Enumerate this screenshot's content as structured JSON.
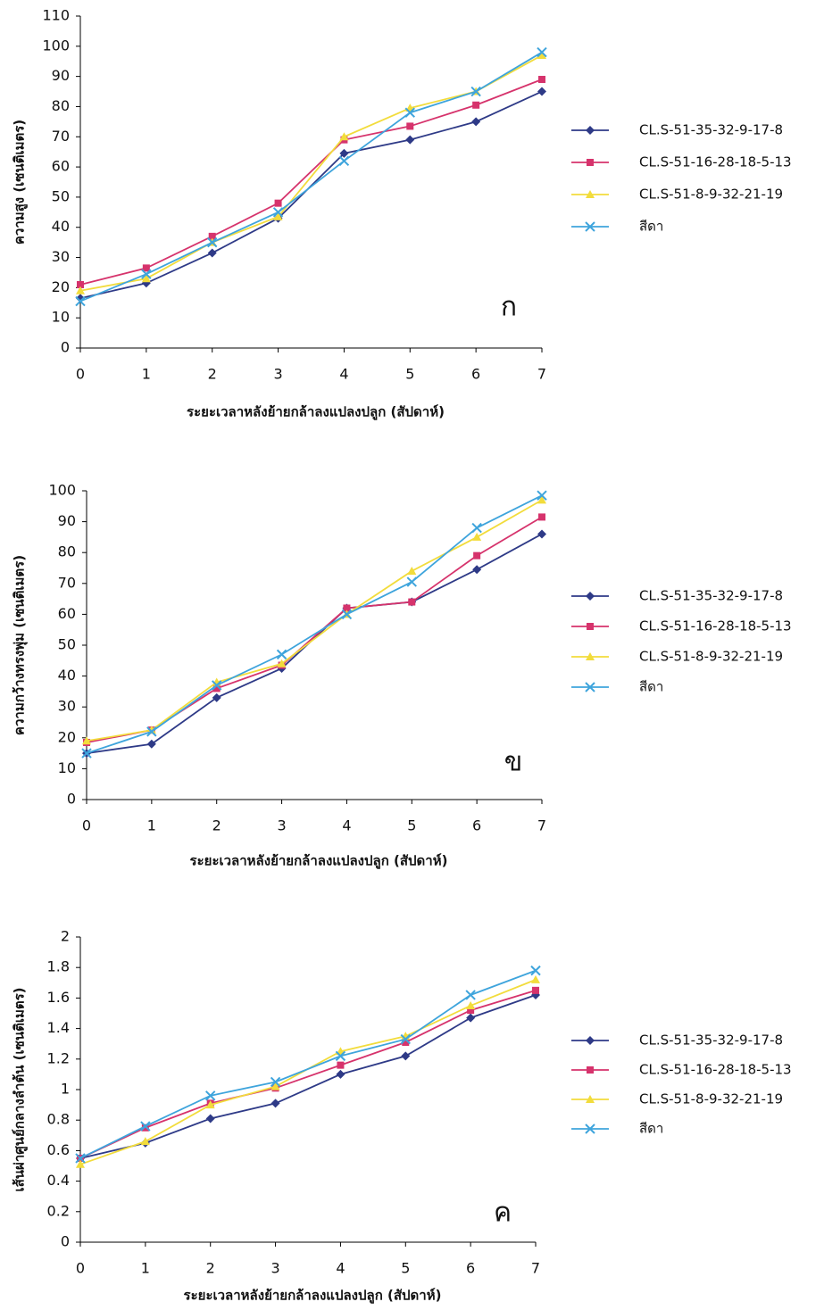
{
  "chart_data": [
    {
      "type": "line",
      "ylabel": "ความสูง (เซนติเมตร)",
      "xlabel": "ระยะเวลาหลังย้ายกล้าลงแปลงปลูก (สัปดาห์)",
      "annotation": "ก",
      "x": [
        0,
        1,
        2,
        3,
        4,
        5,
        6,
        7
      ],
      "xlim": [
        0,
        7
      ],
      "xticks": [
        0,
        1,
        2,
        3,
        4,
        5,
        6,
        7
      ],
      "ylim": [
        0,
        110
      ],
      "yticks": [
        0,
        10,
        20,
        30,
        40,
        50,
        60,
        70,
        80,
        90,
        100,
        110
      ],
      "series": [
        {
          "name": "CL.S-51-35-32-9-17-8",
          "color": "#2e3a87",
          "marker": "diamond",
          "values": [
            16.5,
            21.5,
            31.5,
            43,
            64.5,
            69,
            75,
            85
          ]
        },
        {
          "name": "CL.S-51-16-28-18-5-13",
          "color": "#d6336c",
          "marker": "square",
          "values": [
            21,
            26.5,
            37,
            48,
            69,
            73.5,
            80.5,
            89
          ]
        },
        {
          "name": "CL.S-51-8-9-32-21-19",
          "color": "#f2dc3c",
          "marker": "triangle",
          "values": [
            19,
            23,
            35,
            43.5,
            70,
            79.5,
            85,
            97
          ]
        },
        {
          "name": "สีดา",
          "color": "#3ea4dc",
          "marker": "x",
          "values": [
            15.5,
            24.5,
            35,
            45,
            62,
            78,
            85,
            98
          ]
        }
      ]
    },
    {
      "type": "line",
      "ylabel": "ความกว้างทรงพุ่ม (เซนติเมตร)",
      "xlabel": "ระยะเวลาหลังย้ายกล้าลงแปลงปลูก (สัปดาห์)",
      "annotation": "ข",
      "x": [
        0,
        1,
        2,
        3,
        4,
        5,
        6,
        7
      ],
      "xlim": [
        0,
        7
      ],
      "xticks": [
        0,
        1,
        2,
        3,
        4,
        5,
        6,
        7
      ],
      "ylim": [
        0,
        100
      ],
      "yticks": [
        0,
        10,
        20,
        30,
        40,
        50,
        60,
        70,
        80,
        90,
        100
      ],
      "series": [
        {
          "name": "CL.S-51-35-32-9-17-8",
          "color": "#2e3a87",
          "marker": "diamond",
          "values": [
            15,
            18,
            33,
            42.5,
            62,
            64,
            74.5,
            86
          ]
        },
        {
          "name": "CL.S-51-16-28-18-5-13",
          "color": "#d6336c",
          "marker": "square",
          "values": [
            18.5,
            22.5,
            36,
            43.5,
            62,
            64,
            79,
            91.5
          ]
        },
        {
          "name": "CL.S-51-8-9-32-21-19",
          "color": "#f2dc3c",
          "marker": "triangle",
          "values": [
            19,
            22.5,
            38,
            44,
            60,
            74,
            85,
            97
          ]
        },
        {
          "name": "สีดา",
          "color": "#3ea4dc",
          "marker": "x",
          "values": [
            15,
            22,
            37,
            47,
            60,
            70.5,
            88,
            98.5
          ]
        }
      ]
    },
    {
      "type": "line",
      "ylabel": "เส้นผ่าศูนย์กลางลำต้น (เซนติเมตร)",
      "xlabel": "ระยะเวลาหลังย้ายกล้าลงแปลงปลูก (สัปดาห์)",
      "annotation": "ค",
      "x": [
        0,
        1,
        2,
        3,
        4,
        5,
        6,
        7
      ],
      "xlim": [
        0,
        7
      ],
      "xticks": [
        0,
        1,
        2,
        3,
        4,
        5,
        6,
        7
      ],
      "ylim": [
        0,
        2
      ],
      "yticks": [
        0,
        0.2,
        0.4,
        0.6,
        0.8,
        1,
        1.2,
        1.4,
        1.6,
        1.8,
        2
      ],
      "series": [
        {
          "name": "CL.S-51-35-32-9-17-8",
          "color": "#2e3a87",
          "marker": "diamond",
          "values": [
            0.55,
            0.65,
            0.81,
            0.91,
            1.1,
            1.22,
            1.47,
            1.62
          ]
        },
        {
          "name": "CL.S-51-16-28-18-5-13",
          "color": "#d6336c",
          "marker": "square",
          "values": [
            0.55,
            0.75,
            0.91,
            1.01,
            1.16,
            1.31,
            1.52,
            1.65
          ]
        },
        {
          "name": "CL.S-51-8-9-32-21-19",
          "color": "#f2dc3c",
          "marker": "triangle",
          "values": [
            0.51,
            0.66,
            0.9,
            1.02,
            1.25,
            1.35,
            1.55,
            1.72
          ]
        },
        {
          "name": "สีดา",
          "color": "#3ea4dc",
          "marker": "x",
          "values": [
            0.55,
            0.76,
            0.96,
            1.05,
            1.22,
            1.33,
            1.62,
            1.78
          ]
        }
      ]
    }
  ]
}
